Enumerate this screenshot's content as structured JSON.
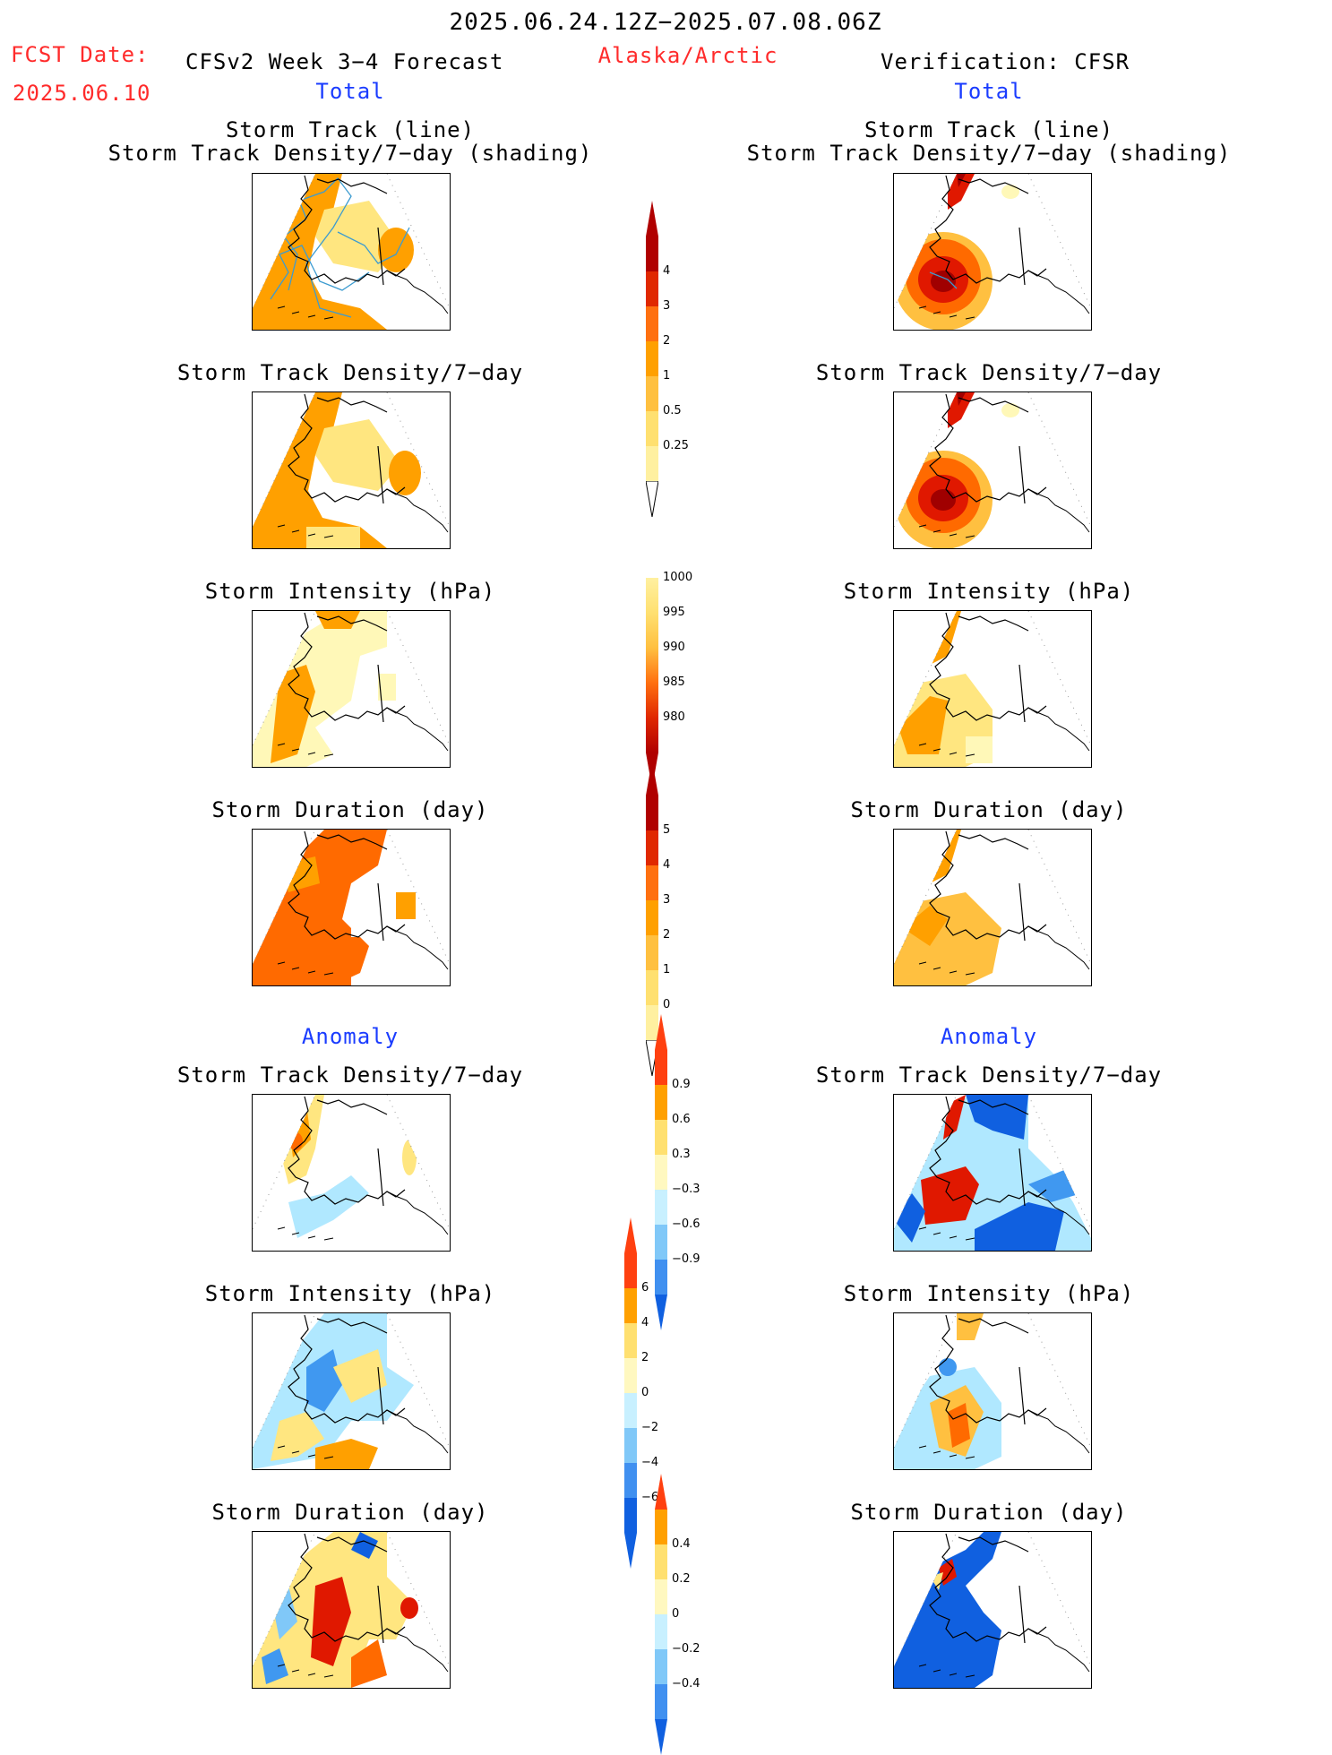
{
  "header": {
    "period": "2025.06.24.12Z−2025.07.08.06Z",
    "fcst_date_label": "FCST Date:",
    "fcst_date_value": "2025.06.10",
    "model": "CFSv2 Week 3−4 Forecast",
    "region": "Alaska/Arctic",
    "verification": "Verification: CFSR"
  },
  "sections": {
    "total": "Total",
    "anomaly": "Anomaly"
  },
  "titles": {
    "track_line": "Storm Track (line)",
    "track_shading": "Storm Track Density/7−day (shading)",
    "density": "Storm Track Density/7−day",
    "intensity": "Storm Intensity (hPa)",
    "duration": "Storm Duration (day)"
  },
  "colorbars": {
    "density_total": [
      "4",
      "3",
      "2",
      "1",
      "0.5",
      "0.25"
    ],
    "intensity_total": [
      "1000",
      "995",
      "990",
      "985",
      "980"
    ],
    "duration_total": [
      "5",
      "4",
      "3",
      "2",
      "1",
      "0"
    ],
    "density_anom": [
      "0.9",
      "0.6",
      "0.3",
      "−0.3",
      "−0.6",
      "−0.9"
    ],
    "intensity_anom": [
      "6",
      "4",
      "2",
      "0",
      "−2",
      "−4",
      "−6"
    ],
    "duration_anom": [
      "0.4",
      "0.2",
      "0",
      "−0.2",
      "−0.4"
    ]
  },
  "colors": {
    "warm": [
      "#fff8b8",
      "#ffe680",
      "#ffc040",
      "#ffa000",
      "#ff6a00",
      "#e01800",
      "#a00000"
    ],
    "cool": [
      "#e0f8ff",
      "#b0e8ff",
      "#80c8f8",
      "#4098f0",
      "#1060e0"
    ],
    "label_red": "#ff2b2b",
    "label_blue": "#1a3cff",
    "track_line": "#3c9bd0"
  }
}
